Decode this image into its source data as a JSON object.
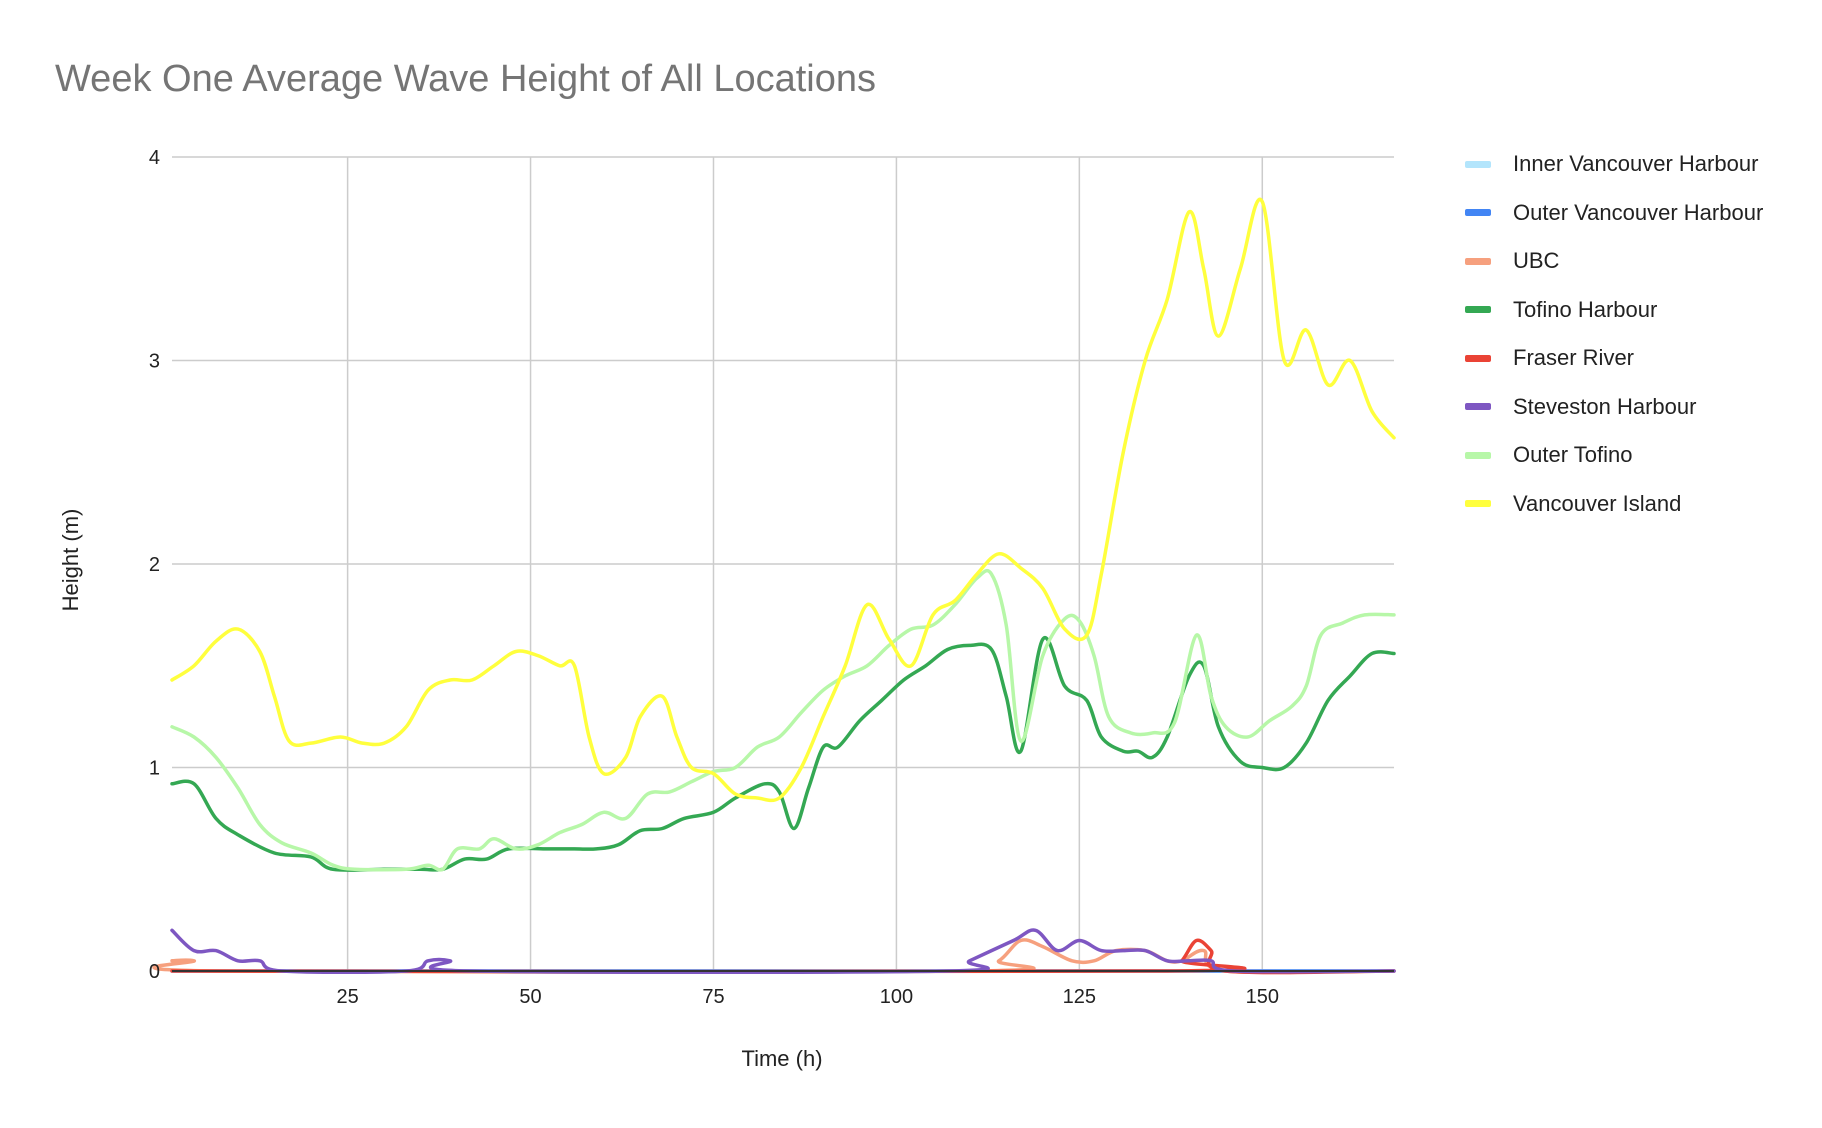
{
  "chart_data": {
    "type": "line",
    "title": "Week One Average Wave Height of All Locations",
    "xlabel": "Time (h)",
    "ylabel": "Height (m)",
    "xlim": [
      1,
      168
    ],
    "ylim": [
      0,
      4
    ],
    "x_ticks": [
      25,
      50,
      75,
      100,
      125,
      150
    ],
    "y_ticks": [
      0,
      1,
      2,
      3,
      4
    ],
    "grid": true,
    "legend_position": "right",
    "series": [
      {
        "name": "Inner Vancouver Harbour",
        "color": "#b3e5fc",
        "points": [
          [
            1,
            0
          ],
          [
            168,
            0
          ]
        ]
      },
      {
        "name": "Outer Vancouver Harbour",
        "color": "#4285f4",
        "points": [
          [
            1,
            0
          ],
          [
            168,
            0
          ]
        ]
      },
      {
        "name": "UBC",
        "color": "#f6a07e",
        "points": [
          [
            1,
            0.05
          ],
          [
            4,
            0.05
          ],
          [
            7,
            0
          ],
          [
            110,
            0
          ],
          [
            114,
            0.05
          ],
          [
            117,
            0.15
          ],
          [
            120,
            0.12
          ],
          [
            124,
            0.05
          ],
          [
            127,
            0.05
          ],
          [
            130,
            0.1
          ],
          [
            134,
            0.1
          ],
          [
            137,
            0.05
          ],
          [
            139,
            0.05
          ],
          [
            142,
            0.1
          ],
          [
            145,
            0
          ],
          [
            168,
            0
          ]
        ]
      },
      {
        "name": "Tofino Harbour",
        "color": "#34a853",
        "points": [
          [
            1,
            0.92
          ],
          [
            4,
            0.92
          ],
          [
            7,
            0.75
          ],
          [
            10,
            0.67
          ],
          [
            15,
            0.58
          ],
          [
            20,
            0.56
          ],
          [
            23,
            0.5
          ],
          [
            30,
            0.5
          ],
          [
            35,
            0.5
          ],
          [
            38,
            0.5
          ],
          [
            41,
            0.55
          ],
          [
            44,
            0.55
          ],
          [
            47,
            0.6
          ],
          [
            52,
            0.6
          ],
          [
            56,
            0.6
          ],
          [
            59,
            0.6
          ],
          [
            62,
            0.62
          ],
          [
            65,
            0.69
          ],
          [
            68,
            0.7
          ],
          [
            71,
            0.75
          ],
          [
            75,
            0.78
          ],
          [
            78,
            0.85
          ],
          [
            82,
            0.92
          ],
          [
            84,
            0.88
          ],
          [
            86,
            0.7
          ],
          [
            88,
            0.9
          ],
          [
            90,
            1.1
          ],
          [
            92,
            1.1
          ],
          [
            95,
            1.23
          ],
          [
            98,
            1.33
          ],
          [
            101,
            1.43
          ],
          [
            104,
            1.5
          ],
          [
            107,
            1.58
          ],
          [
            110,
            1.6
          ],
          [
            113,
            1.58
          ],
          [
            115,
            1.35
          ],
          [
            117,
            1.08
          ],
          [
            120,
            1.63
          ],
          [
            123,
            1.4
          ],
          [
            126,
            1.33
          ],
          [
            128,
            1.15
          ],
          [
            131,
            1.08
          ],
          [
            133,
            1.08
          ],
          [
            135,
            1.05
          ],
          [
            137,
            1.15
          ],
          [
            140,
            1.45
          ],
          [
            142,
            1.5
          ],
          [
            144,
            1.2
          ],
          [
            147,
            1.03
          ],
          [
            150,
            1.0
          ],
          [
            153,
            1.0
          ],
          [
            156,
            1.12
          ],
          [
            159,
            1.33
          ],
          [
            162,
            1.45
          ],
          [
            165,
            1.56
          ],
          [
            168,
            1.56
          ]
        ]
      },
      {
        "name": "Fraser River",
        "color": "#ea4335",
        "points": [
          [
            1,
            0
          ],
          [
            137,
            0
          ],
          [
            139,
            0.05
          ],
          [
            141,
            0.15
          ],
          [
            143,
            0.1
          ],
          [
            145,
            0
          ],
          [
            168,
            0
          ]
        ]
      },
      {
        "name": "Steveston Harbour",
        "color": "#7e57c2",
        "points": [
          [
            1,
            0.2
          ],
          [
            4,
            0.1
          ],
          [
            7,
            0.1
          ],
          [
            10,
            0.05
          ],
          [
            13,
            0.05
          ],
          [
            16,
            0
          ],
          [
            33,
            0
          ],
          [
            36,
            0.05
          ],
          [
            39,
            0.05
          ],
          [
            42,
            0
          ],
          [
            107,
            0
          ],
          [
            110,
            0.05
          ],
          [
            116,
            0.15
          ],
          [
            119,
            0.2
          ],
          [
            122,
            0.1
          ],
          [
            125,
            0.15
          ],
          [
            128,
            0.1
          ],
          [
            131,
            0.1
          ],
          [
            134,
            0.1
          ],
          [
            137,
            0.05
          ],
          [
            140,
            0.05
          ],
          [
            143,
            0.05
          ],
          [
            146,
            0
          ],
          [
            168,
            0
          ]
        ]
      },
      {
        "name": "Outer Tofino",
        "color": "#b7f7a8",
        "points": [
          [
            1,
            1.2
          ],
          [
            4,
            1.15
          ],
          [
            7,
            1.05
          ],
          [
            10,
            0.9
          ],
          [
            13,
            0.72
          ],
          [
            16,
            0.63
          ],
          [
            20,
            0.58
          ],
          [
            23,
            0.52
          ],
          [
            26,
            0.5
          ],
          [
            33,
            0.5
          ],
          [
            36,
            0.52
          ],
          [
            38,
            0.5
          ],
          [
            40,
            0.6
          ],
          [
            43,
            0.6
          ],
          [
            45,
            0.65
          ],
          [
            48,
            0.6
          ],
          [
            51,
            0.62
          ],
          [
            54,
            0.68
          ],
          [
            57,
            0.72
          ],
          [
            60,
            0.78
          ],
          [
            63,
            0.75
          ],
          [
            66,
            0.87
          ],
          [
            69,
            0.88
          ],
          [
            72,
            0.93
          ],
          [
            75,
            0.98
          ],
          [
            78,
            1.0
          ],
          [
            81,
            1.1
          ],
          [
            84,
            1.15
          ],
          [
            87,
            1.27
          ],
          [
            90,
            1.38
          ],
          [
            93,
            1.45
          ],
          [
            96,
            1.5
          ],
          [
            99,
            1.6
          ],
          [
            102,
            1.68
          ],
          [
            105,
            1.7
          ],
          [
            108,
            1.8
          ],
          [
            111,
            1.93
          ],
          [
            113,
            1.95
          ],
          [
            115,
            1.7
          ],
          [
            117,
            1.13
          ],
          [
            120,
            1.55
          ],
          [
            123,
            1.73
          ],
          [
            125,
            1.72
          ],
          [
            127,
            1.55
          ],
          [
            129,
            1.25
          ],
          [
            132,
            1.17
          ],
          [
            135,
            1.17
          ],
          [
            138,
            1.22
          ],
          [
            141,
            1.65
          ],
          [
            143,
            1.35
          ],
          [
            145,
            1.2
          ],
          [
            148,
            1.15
          ],
          [
            151,
            1.23
          ],
          [
            154,
            1.3
          ],
          [
            156,
            1.4
          ],
          [
            158,
            1.65
          ],
          [
            161,
            1.71
          ],
          [
            164,
            1.75
          ],
          [
            168,
            1.75
          ]
        ]
      },
      {
        "name": "Vancouver Island",
        "color": "#ffff3d",
        "points": [
          [
            1,
            1.43
          ],
          [
            4,
            1.5
          ],
          [
            7,
            1.62
          ],
          [
            10,
            1.68
          ],
          [
            13,
            1.57
          ],
          [
            15,
            1.35
          ],
          [
            17,
            1.13
          ],
          [
            20,
            1.12
          ],
          [
            24,
            1.15
          ],
          [
            27,
            1.12
          ],
          [
            30,
            1.12
          ],
          [
            33,
            1.2
          ],
          [
            36,
            1.38
          ],
          [
            39,
            1.43
          ],
          [
            42,
            1.43
          ],
          [
            45,
            1.5
          ],
          [
            48,
            1.57
          ],
          [
            51,
            1.55
          ],
          [
            54,
            1.5
          ],
          [
            56,
            1.5
          ],
          [
            58,
            1.15
          ],
          [
            60,
            0.97
          ],
          [
            63,
            1.05
          ],
          [
            65,
            1.25
          ],
          [
            68,
            1.35
          ],
          [
            70,
            1.15
          ],
          [
            72,
            1.0
          ],
          [
            75,
            0.97
          ],
          [
            78,
            0.87
          ],
          [
            81,
            0.85
          ],
          [
            84,
            0.85
          ],
          [
            87,
            1.0
          ],
          [
            90,
            1.25
          ],
          [
            93,
            1.5
          ],
          [
            96,
            1.8
          ],
          [
            99,
            1.63
          ],
          [
            102,
            1.5
          ],
          [
            105,
            1.75
          ],
          [
            108,
            1.82
          ],
          [
            111,
            1.95
          ],
          [
            114,
            2.05
          ],
          [
            117,
            1.98
          ],
          [
            120,
            1.88
          ],
          [
            123,
            1.68
          ],
          [
            126,
            1.65
          ],
          [
            128,
            1.95
          ],
          [
            131,
            2.55
          ],
          [
            134,
            3.0
          ],
          [
            137,
            3.3
          ],
          [
            140,
            3.73
          ],
          [
            142,
            3.45
          ],
          [
            144,
            3.12
          ],
          [
            147,
            3.45
          ],
          [
            150,
            3.78
          ],
          [
            153,
            3.0
          ],
          [
            156,
            3.15
          ],
          [
            159,
            2.88
          ],
          [
            162,
            3.0
          ],
          [
            165,
            2.75
          ],
          [
            168,
            2.62
          ]
        ]
      }
    ]
  }
}
